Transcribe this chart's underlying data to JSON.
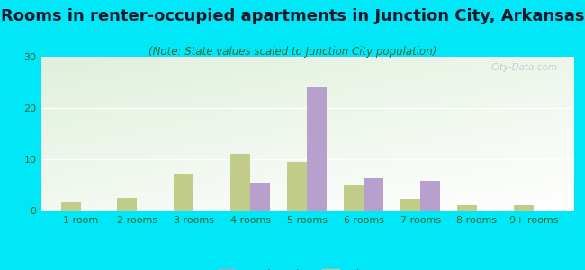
{
  "title": "Rooms in renter-occupied apartments in Junction City, Arkansas",
  "subtitle": "(Note: State values scaled to Junction City population)",
  "categories": [
    "1 room",
    "2 rooms",
    "3 rooms",
    "4 rooms",
    "5 rooms",
    "6 rooms",
    "7 rooms",
    "8 rooms",
    "9+ rooms"
  ],
  "junction_city": [
    0,
    0,
    0,
    5.5,
    24,
    6.3,
    5.8,
    0,
    0
  ],
  "arkansas": [
    1.5,
    2.5,
    7.2,
    11,
    9.5,
    5,
    2.3,
    1.0,
    1.0
  ],
  "jc_color": "#b8a0cc",
  "ar_color": "#c0cc88",
  "bg_color": "#00e8f8",
  "ylim": [
    0,
    30
  ],
  "yticks": [
    0,
    10,
    20,
    30
  ],
  "title_fontsize": 13,
  "subtitle_fontsize": 8.5,
  "tick_fontsize": 8,
  "legend_fontsize": 9,
  "bar_width": 0.35,
  "watermark": "City-Data.com"
}
